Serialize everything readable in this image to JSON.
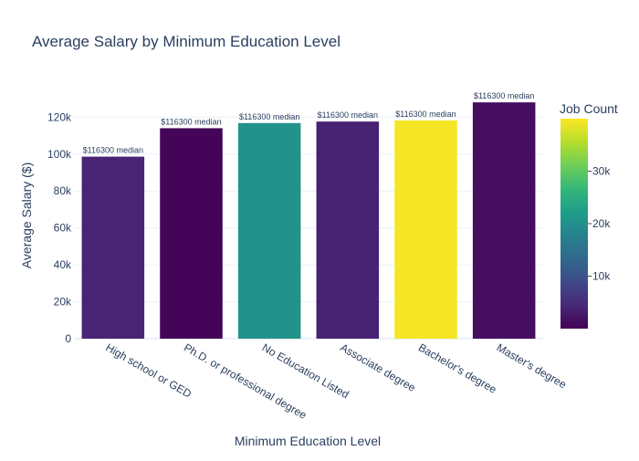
{
  "chart_data": {
    "type": "bar",
    "title": "Average Salary by Minimum Education Level",
    "xlabel": "Minimum Education Level",
    "ylabel": "Average Salary ($)",
    "ylim": [
      0,
      134000
    ],
    "yticks": [
      0,
      20000,
      40000,
      60000,
      80000,
      100000,
      120000
    ],
    "ytick_labels": [
      "0",
      "20k",
      "40k",
      "60k",
      "80k",
      "100k",
      "120k"
    ],
    "grid": true,
    "categories": [
      "High school or GED",
      "Ph.D. or professional degree",
      "No Education Listed",
      "Associate degree",
      "Bachelor's degree",
      "Master's degree"
    ],
    "values": [
      98600,
      114000,
      116800,
      117600,
      118200,
      128000
    ],
    "bar_labels": [
      "$116300 median",
      "$116300 median",
      "$116300 median",
      "$116300 median",
      "$116300 median",
      "$116300 median"
    ],
    "color_values": [
      4000,
      500,
      20500,
      3800,
      39500,
      1500
    ],
    "colorbar": {
      "title": "Job Count",
      "colorscale": "viridis",
      "range": [
        0,
        40000
      ],
      "ticks": [
        10000,
        20000,
        30000
      ],
      "tick_labels": [
        "10k",
        "20k",
        "30k"
      ],
      "placement": "right"
    }
  }
}
